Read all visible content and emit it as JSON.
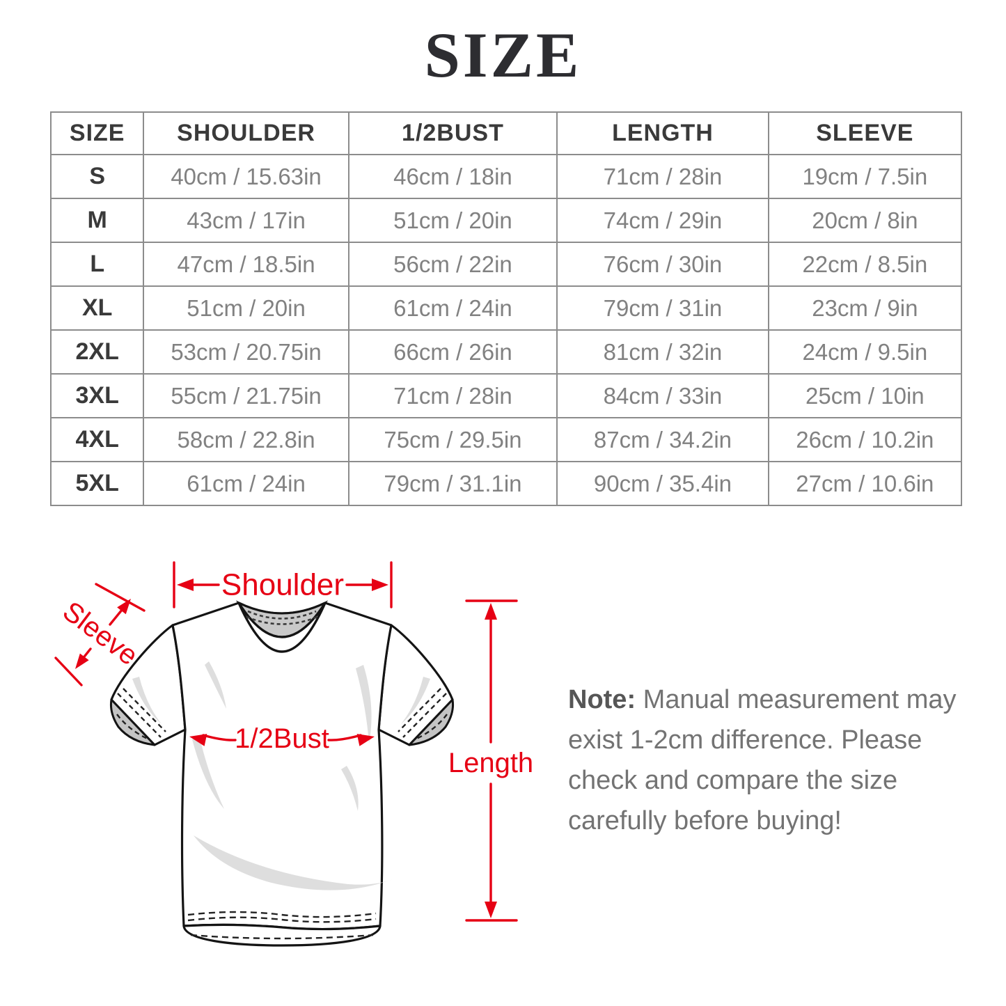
{
  "title": "SIZE",
  "table": {
    "columns": [
      "SIZE",
      "SHOULDER",
      "1/2BUST",
      "LENGTH",
      "SLEEVE"
    ],
    "rows": [
      [
        "S",
        "40cm / 15.63in",
        "46cm / 18in",
        "71cm / 28in",
        "19cm / 7.5in"
      ],
      [
        "M",
        "43cm / 17in",
        "51cm / 20in",
        "74cm / 29in",
        "20cm / 8in"
      ],
      [
        "L",
        "47cm / 18.5in",
        "56cm / 22in",
        "76cm / 30in",
        "22cm / 8.5in"
      ],
      [
        "XL",
        "51cm / 20in",
        "61cm / 24in",
        "79cm / 31in",
        "23cm / 9in"
      ],
      [
        "2XL",
        "53cm / 20.75in",
        "66cm / 26in",
        "81cm / 32in",
        "24cm / 9.5in"
      ],
      [
        "3XL",
        "55cm / 21.75in",
        "71cm / 28in",
        "84cm / 33in",
        "25cm / 10in"
      ],
      [
        "4XL",
        "58cm / 22.8in",
        "75cm / 29.5in",
        "87cm / 34.2in",
        "26cm / 10.2in"
      ],
      [
        "5XL",
        "61cm / 24in",
        "79cm / 31.1in",
        "90cm / 35.4in",
        "27cm / 10.6in"
      ]
    ]
  },
  "diagram": {
    "labels": {
      "shoulder": "Shoulder",
      "sleeve": "Sleeve",
      "half_bust": "1/2Bust",
      "length": "Length"
    }
  },
  "note": {
    "prefix": "Note:",
    "lines": [
      "Manual measurement may",
      "exist 1-2cm difference. Please",
      "check and compare the size",
      "carefully before buying!"
    ]
  },
  "colors": {
    "accent_red": "#e60014",
    "table_border": "#8c8c8c",
    "header_text": "#3a3a3a",
    "value_text": "#818181",
    "note_text": "#737373"
  }
}
